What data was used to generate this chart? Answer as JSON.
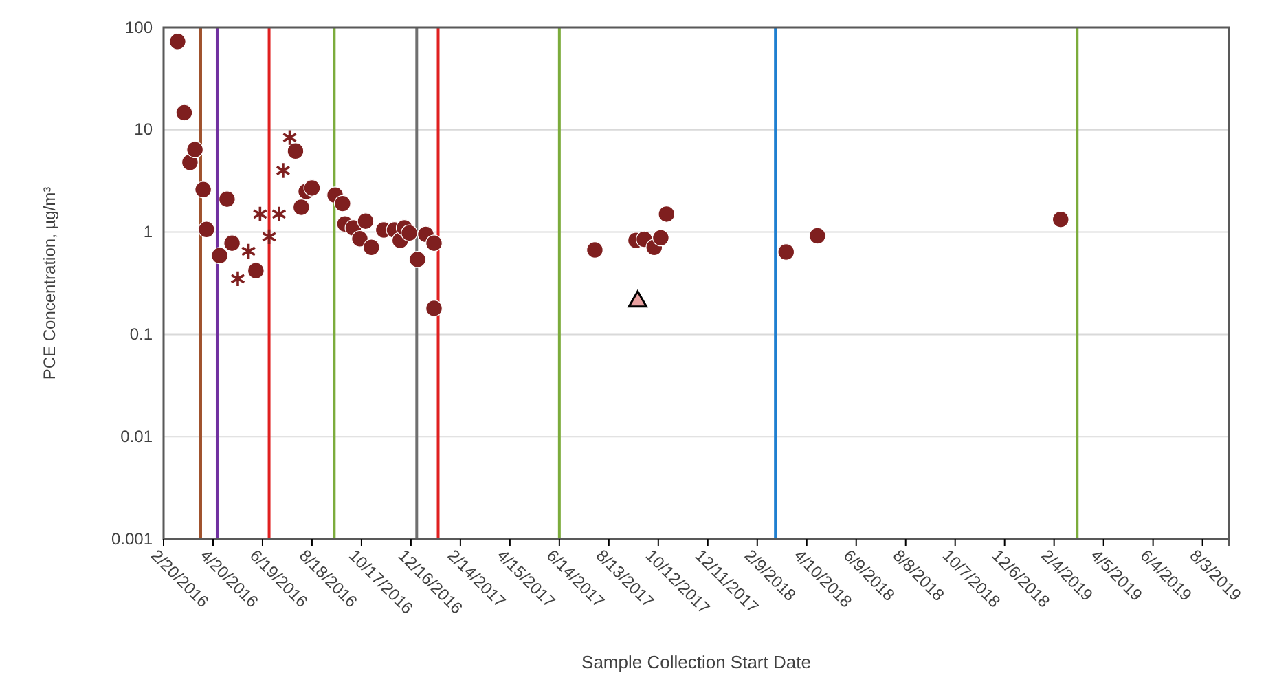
{
  "chart_data": {
    "type": "scatter",
    "xlabel": "Sample Collection Start Date",
    "ylabel": "PCE Concentration, µg/m³",
    "log": "y",
    "grid": "y",
    "xlim": [
      "2016-02-20",
      "2019-09-04"
    ],
    "xticks": [
      {
        "value": "2016-02-20",
        "label": "2/20/2016"
      },
      {
        "value": "2016-04-20",
        "label": "4/20/2016"
      },
      {
        "value": "2016-06-19",
        "label": "6/19/2016"
      },
      {
        "value": "2016-08-18",
        "label": "8/18/2016"
      },
      {
        "value": "2016-10-17",
        "label": "10/17/2016"
      },
      {
        "value": "2016-12-16",
        "label": "12/16/2016"
      },
      {
        "value": "2017-02-14",
        "label": "2/14/2017"
      },
      {
        "value": "2017-04-15",
        "label": "4/15/2017"
      },
      {
        "value": "2017-06-14",
        "label": "6/14/2017"
      },
      {
        "value": "2017-08-13",
        "label": "8/13/2017"
      },
      {
        "value": "2017-10-12",
        "label": "10/12/2017"
      },
      {
        "value": "2017-12-11",
        "label": "12/11/2017"
      },
      {
        "value": "2018-02-09",
        "label": "2/9/2018"
      },
      {
        "value": "2018-04-10",
        "label": "4/10/2018"
      },
      {
        "value": "2018-06-09",
        "label": "6/9/2018"
      },
      {
        "value": "2018-08-08",
        "label": "8/8/2018"
      },
      {
        "value": "2018-10-07",
        "label": "10/7/2018"
      },
      {
        "value": "2018-12-06",
        "label": "12/6/2018"
      },
      {
        "value": "2019-02-04",
        "label": "2/4/2019"
      },
      {
        "value": "2019-04-05",
        "label": "4/5/2019"
      },
      {
        "value": "2019-06-04",
        "label": "6/4/2019"
      },
      {
        "value": "2019-08-03",
        "label": "8/3/2019"
      }
    ],
    "ylim": [
      0.001,
      100
    ],
    "yticks": [
      0.001,
      0.01,
      0.1,
      1,
      10,
      100
    ],
    "series": [
      {
        "color": "#7f1f1f",
        "marker": "circle",
        "x": [
          "2016-03-08",
          "2016-03-16",
          "2016-03-23",
          "2016-03-29",
          "2016-04-08",
          "2016-04-12",
          "2016-04-28",
          "2016-05-07",
          "2016-05-13",
          "2016-06-11",
          "2016-07-29",
          "2016-08-05",
          "2016-08-11",
          "2016-08-18",
          "2016-09-15",
          "2016-09-24",
          "2016-09-27",
          "2016-10-07",
          "2016-10-15",
          "2016-10-22",
          "2016-10-29",
          "2016-11-13",
          "2016-11-26",
          "2016-12-03",
          "2016-12-08",
          "2016-12-14",
          "2016-12-24",
          "2017-01-03",
          "2017-01-13",
          "2017-01-13",
          "2017-07-27",
          "2017-09-15",
          "2017-09-25",
          "2017-10-07",
          "2017-10-15",
          "2017-10-22",
          "2018-03-16",
          "2018-04-23",
          "2019-02-12"
        ],
        "values": [
          73,
          14.7,
          4.8,
          6.4,
          2.6,
          1.06,
          0.59,
          2.1,
          0.78,
          0.42,
          6.2,
          1.75,
          2.5,
          2.7,
          2.3,
          1.9,
          1.2,
          1.1,
          0.86,
          1.28,
          0.71,
          1.05,
          1.05,
          0.83,
          1.1,
          0.98,
          0.54,
          0.95,
          0.78,
          0.18,
          0.67,
          0.83,
          0.85,
          0.71,
          0.88,
          1.5,
          0.64,
          0.92,
          1.33
        ]
      },
      {
        "color": "#7f1f1f",
        "marker": "cross",
        "x": [
          "2016-05-20",
          "2016-06-02",
          "2016-06-16",
          "2016-06-27",
          "2016-07-09",
          "2016-07-14",
          "2016-07-22"
        ],
        "values": [
          0.35,
          0.65,
          1.5,
          0.9,
          1.5,
          4.0,
          8.4
        ]
      },
      {
        "color": "#e8a0a0",
        "marker": "triangle",
        "x": [
          "2017-09-17"
        ],
        "values": [
          0.21
        ]
      }
    ],
    "ref_lines": [
      {
        "axis": "x",
        "value": "2016-04-05",
        "color": "#a0522d"
      },
      {
        "axis": "x",
        "value": "2016-04-25",
        "color": "#7030a0"
      },
      {
        "axis": "x",
        "value": "2016-06-27",
        "color": "#e02020"
      },
      {
        "axis": "x",
        "value": "2016-09-14",
        "color": "#7cac3c"
      },
      {
        "axis": "x",
        "value": "2016-12-23",
        "color": "#707070"
      },
      {
        "axis": "x",
        "value": "2017-01-18",
        "color": "#e02020"
      },
      {
        "axis": "x",
        "value": "2017-06-14",
        "color": "#7cac3c"
      },
      {
        "axis": "x",
        "value": "2018-03-03",
        "color": "#1f7fd0"
      },
      {
        "axis": "x",
        "value": "2019-03-04",
        "color": "#7cac3c"
      }
    ]
  }
}
